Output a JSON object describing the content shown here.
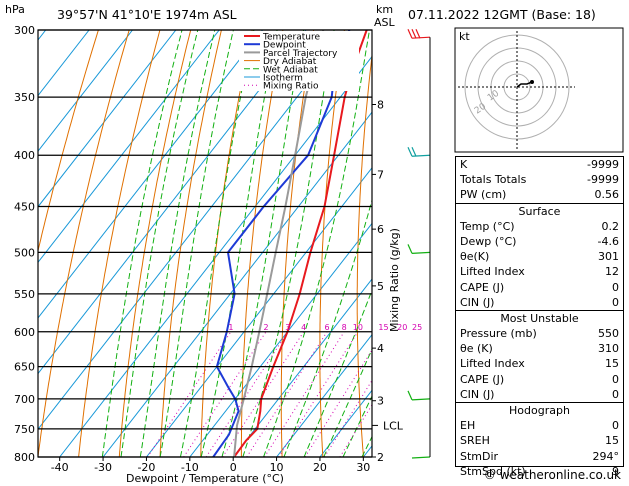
{
  "header": {
    "hpa_unit": "hPa",
    "location": "39°57'N  41°10'E  1974m  ASL",
    "km_unit": "km",
    "asl_unit": "ASL",
    "datetime": "07.11.2022  12GMT  (Base: 18)"
  },
  "chart_data": {
    "type": "skewt",
    "xlabel": "Dewpoint / Temperature (°C)",
    "ylabel_right": "Mixing Ratio (g/kg)",
    "pressure_ticks": [
      300,
      350,
      400,
      450,
      500,
      550,
      600,
      650,
      700,
      750,
      800
    ],
    "pressure_range": [
      300,
      800
    ],
    "temp_ticks": [
      -40,
      -30,
      -20,
      -10,
      0,
      10,
      20,
      30
    ],
    "temp_range_at_bottom": [
      -45,
      32
    ],
    "km_ticks": [
      {
        "label": "8",
        "p": 356
      },
      {
        "label": "7",
        "p": 418
      },
      {
        "label": "6",
        "p": 474
      },
      {
        "label": "5",
        "p": 540
      },
      {
        "label": "4",
        "p": 623
      },
      {
        "label": "3",
        "p": 703
      },
      {
        "label": "2",
        "p": 800
      }
    ],
    "lcl": {
      "label": "LCL",
      "p": 744
    },
    "mixing_ratio_labels": [
      "1",
      "2",
      "3",
      "4",
      "6",
      "8",
      "10",
      "15",
      "20",
      "25"
    ],
    "mixing_ratio_values": [
      1,
      2,
      3,
      4,
      6,
      8,
      10,
      15,
      20,
      25
    ],
    "legend": [
      "Temperature",
      "Dewpoint",
      "Parcel Trajectory",
      "Dry Adiabat",
      "Wet Adiabat",
      "Isotherm",
      "Mixing Ratio"
    ],
    "series": [
      {
        "name": "Temperature",
        "points": [
          [
            800,
            0.2
          ],
          [
            770,
            0.0
          ],
          [
            750,
            0.5
          ],
          [
            720,
            -2.0
          ],
          [
            700,
            -4.0
          ],
          [
            650,
            -7.0
          ],
          [
            600,
            -10.0
          ],
          [
            550,
            -14.0
          ],
          [
            500,
            -19.0
          ],
          [
            450,
            -24.0
          ],
          [
            400,
            -31.0
          ],
          [
            350,
            -39.0
          ],
          [
            330,
            -42.0
          ],
          [
            300,
            -46.0
          ]
        ]
      },
      {
        "name": "Dewpoint",
        "points": [
          [
            800,
            -4.6
          ],
          [
            760,
            -5.0
          ],
          [
            720,
            -7.0
          ],
          [
            700,
            -10.0
          ],
          [
            680,
            -14.0
          ],
          [
            650,
            -20.0
          ],
          [
            600,
            -24.0
          ],
          [
            550,
            -29.0
          ],
          [
            500,
            -38.0
          ],
          [
            450,
            -38.0
          ],
          [
            400,
            -37.0
          ],
          [
            350,
            -42.0
          ],
          [
            330,
            -46.0
          ],
          [
            300,
            -50.0
          ]
        ]
      },
      {
        "name": "Parcel Trajectory",
        "points": [
          [
            800,
            0.2
          ],
          [
            744,
            -4.8
          ],
          [
            700,
            -8.0
          ],
          [
            650,
            -12.0
          ],
          [
            600,
            -16.5
          ],
          [
            550,
            -21.5
          ],
          [
            500,
            -27.0
          ],
          [
            450,
            -33.0
          ],
          [
            400,
            -40.0
          ],
          [
            350,
            -48.0
          ],
          [
            300,
            -56.0
          ]
        ]
      }
    ],
    "wind_barbs": [
      {
        "p": 305,
        "dir": 250,
        "speed": 30
      },
      {
        "p": 400,
        "dir": 260,
        "speed": 20
      },
      {
        "p": 500,
        "dir": 280,
        "speed": 10
      },
      {
        "p": 700,
        "dir": 280,
        "speed": 5
      },
      {
        "p": 800,
        "dir": 290,
        "speed": 2
      }
    ]
  },
  "hodograph": {
    "label": "kt",
    "ring_labels": [
      "10",
      "20"
    ]
  },
  "indices": {
    "rows": [
      {
        "k": "K",
        "v": "-9999"
      },
      {
        "k": "Totals Totals",
        "v": "-9999"
      },
      {
        "k": "PW (cm)",
        "v": "0.56"
      }
    ],
    "surface": {
      "title": "Surface",
      "rows": [
        {
          "k": "Temp (°C)",
          "v": "0.2"
        },
        {
          "k": "Dewp (°C)",
          "v": "-4.6"
        },
        {
          "k": "θe(K)",
          "v": "301"
        },
        {
          "k": "Lifted Index",
          "v": "12"
        },
        {
          "k": "CAPE (J)",
          "v": "0"
        },
        {
          "k": "CIN (J)",
          "v": "0"
        }
      ]
    },
    "most_unstable": {
      "title": "Most Unstable",
      "rows": [
        {
          "k": "Pressure (mb)",
          "v": "550"
        },
        {
          "k": "θe (K)",
          "v": "310"
        },
        {
          "k": "Lifted Index",
          "v": "15"
        },
        {
          "k": "CAPE (J)",
          "v": "0"
        },
        {
          "k": "CIN (J)",
          "v": "0"
        }
      ]
    },
    "hodograph_box": {
      "title": "Hodograph",
      "rows": [
        {
          "k": "EH",
          "v": "0"
        },
        {
          "k": "SREH",
          "v": "15"
        },
        {
          "k": "StmDir",
          "v": "294°"
        },
        {
          "k": "StmSpd (kt)",
          "v": "9"
        }
      ]
    }
  },
  "footer": "© weatheronline.co.uk",
  "colors": {
    "temperature": "#e8191e",
    "dewpoint": "#1e3ad6",
    "parcel": "#9a9a9a",
    "dry_adiabat": "#e07000",
    "wet_adiabat": "#12b012",
    "isotherm": "#1898d8",
    "mixing_ratio": "#d400b0"
  }
}
